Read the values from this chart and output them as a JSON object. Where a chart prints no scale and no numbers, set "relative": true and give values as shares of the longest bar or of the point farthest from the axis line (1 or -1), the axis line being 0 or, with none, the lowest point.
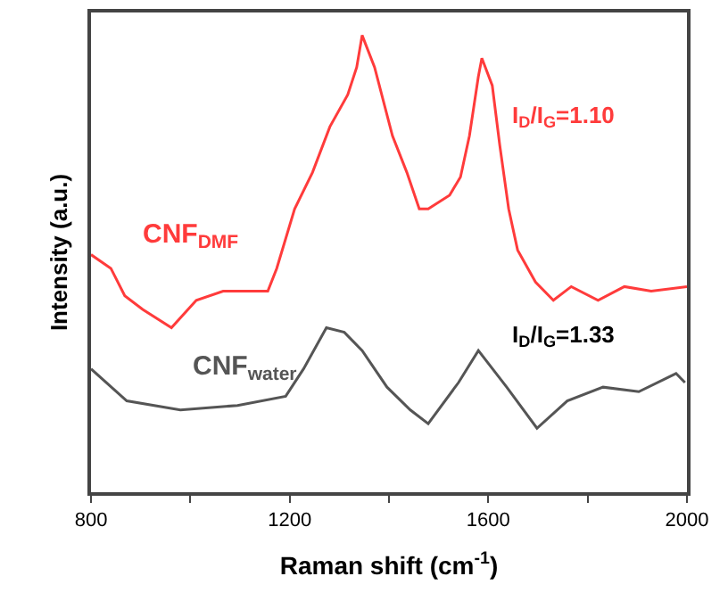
{
  "chart_data": {
    "type": "line",
    "relative": true,
    "xlabel": "Raman shift (cm$^{-1}$)",
    "ylabel": "Intensity (a.u.)",
    "xlim": [
      800,
      2000
    ],
    "xticks": [
      800,
      {
        "value": 1000,
        "label": null
      },
      1200,
      {
        "value": 1400,
        "label": null
      },
      1600,
      {
        "value": 1800,
        "label": null
      },
      2000
    ],
    "tick_labels": "x",
    "legend": false,
    "marker": "none",
    "line_style": "solid",
    "annotations": [
      "I$_{D}$/I$_{G}$=1.10",
      "I$_{D}$/I$_{G}$=1.33"
    ],
    "series": [
      {
        "name": "CNF$_{DMF}$",
        "color": "#ff3b3b",
        "x": [
          800,
          840,
          868,
          904,
          962,
          1012,
          1066,
          1156,
          1174,
          1210,
          1246,
          1281,
          1317,
          1335,
          1346,
          1371,
          1407,
          1436,
          1461,
          1479,
          1522,
          1544,
          1562,
          1580,
          1587,
          1608,
          1623,
          1641,
          1659,
          1695,
          1731,
          1767,
          1821,
          1874,
          1928,
          2000
        ],
        "values": [
          0.52,
          0.49,
          0.43,
          0.4,
          0.36,
          0.42,
          0.44,
          0.44,
          0.49,
          0.62,
          0.7,
          0.8,
          0.87,
          0.93,
          1,
          0.93,
          0.78,
          0.7,
          0.62,
          0.62,
          0.65,
          0.69,
          0.78,
          0.91,
          0.95,
          0.89,
          0.76,
          0.62,
          0.53,
          0.46,
          0.42,
          0.45,
          0.42,
          0.45,
          0.44,
          0.45
        ]
      },
      {
        "name": "CNF$_{water}$",
        "color": "#555555",
        "x": [
          800,
          872,
          980,
          1095,
          1192,
          1228,
          1274,
          1310,
          1346,
          1396,
          1443,
          1479,
          1540,
          1580,
          1637,
          1698,
          1759,
          1831,
          1903,
          1978,
          1996
        ],
        "values": [
          0.27,
          0.2,
          0.18,
          0.19,
          0.21,
          0.27,
          0.36,
          0.35,
          0.31,
          0.23,
          0.18,
          0.15,
          0.24,
          0.31,
          0.23,
          0.14,
          0.2,
          0.23,
          0.22,
          0.26,
          0.24
        ]
      }
    ]
  }
}
